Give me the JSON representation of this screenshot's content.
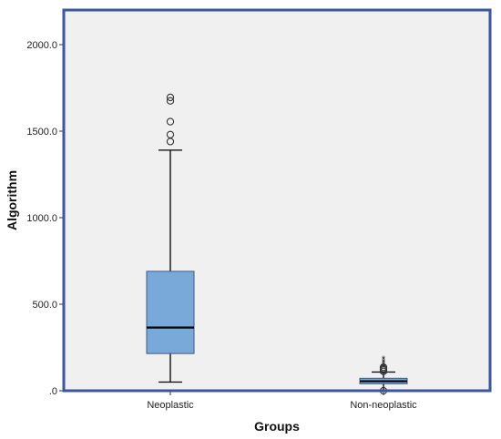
{
  "chart_data": {
    "type": "boxplot",
    "xlabel": "Groups",
    "ylabel": "Algorithm",
    "ylim": [
      0,
      2200
    ],
    "y_ticks": [
      0,
      500,
      1000,
      1500,
      2000
    ],
    "y_tick_labels": [
      ".0",
      "500.0",
      "1000.0",
      "1500.0",
      "2000.0"
    ],
    "grid": false,
    "categories": [
      "Neoplastic",
      "Non-neoplastic"
    ],
    "boxes": [
      {
        "category": "Neoplastic",
        "whisker_low": 50,
        "q1": 215,
        "median": 365,
        "q3": 690,
        "whisker_high": 1390,
        "outliers": [
          1440,
          1480,
          1555,
          1675,
          1695
        ],
        "extremes": []
      },
      {
        "category": "Non-neoplastic",
        "whisker_low": 2,
        "q1": 40,
        "median": 55,
        "q3": 72,
        "whisker_high": 108,
        "outliers": [
          0,
          112,
          120,
          128,
          136
        ],
        "extremes": [
          145,
          160,
          175,
          190
        ]
      }
    ]
  },
  "colors": {
    "plot_background": "#f0f0f0",
    "plot_border": "#3b55a0",
    "box_fill": "#79a9d8",
    "box_stroke": "#3c5a86",
    "median": "#000000",
    "whisker": "#000000"
  }
}
